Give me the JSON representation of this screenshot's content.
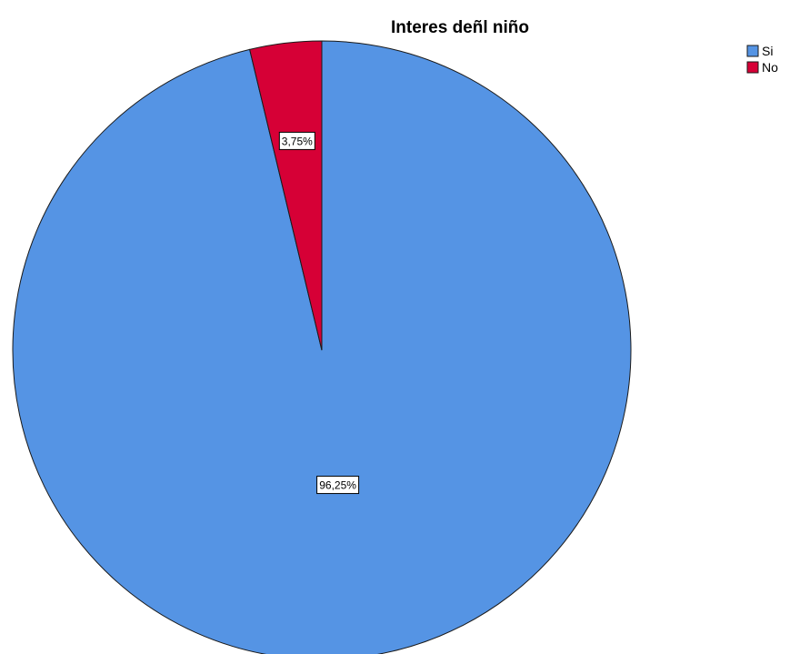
{
  "chart_data": {
    "type": "pie",
    "title": "Interes deñl niño",
    "categories": [
      "Si",
      "No"
    ],
    "values": [
      96.25,
      3.75
    ],
    "labels": [
      "96,25%",
      "3,75%"
    ],
    "colors": [
      "#5594e4",
      "#d60036"
    ],
    "legend": {
      "placement": "top-right",
      "entries": [
        "Si",
        "No"
      ]
    }
  }
}
